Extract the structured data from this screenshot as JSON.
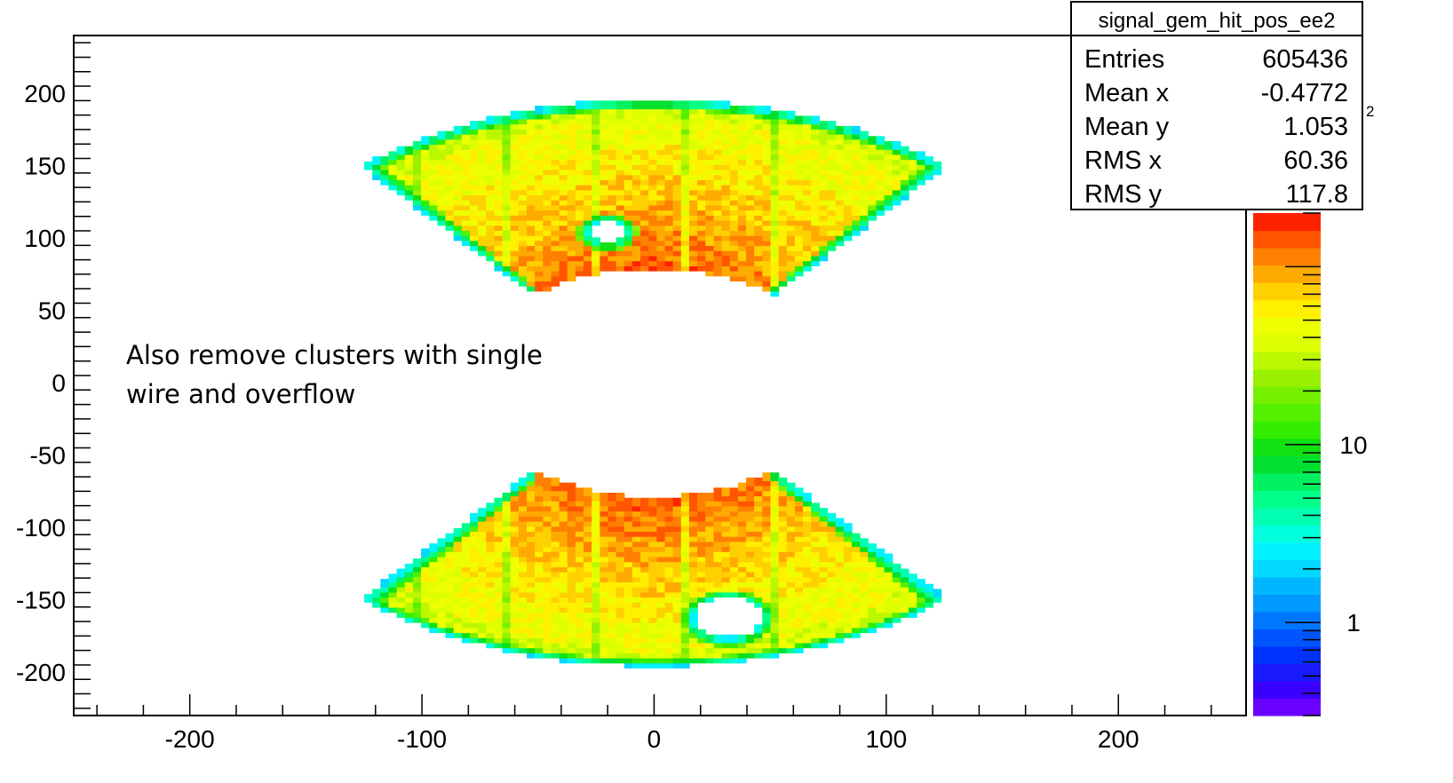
{
  "chart_data": {
    "type": "heatmap",
    "title": "signal_gem_hit_pos_ee2",
    "xlabel": "",
    "ylabel": "",
    "xlim": [
      -250,
      255
    ],
    "ylim": [
      -230,
      240
    ],
    "x_ticks": [
      -200,
      -100,
      0,
      100,
      200
    ],
    "y_ticks": [
      200,
      150,
      100,
      50,
      0,
      -50,
      -100,
      -150,
      -200
    ],
    "z_scale": "log",
    "z_range": [
      0.3,
      200
    ],
    "colorbar_ticks": [
      {
        "value": 1,
        "label": "1"
      },
      {
        "value": 10,
        "label": "10"
      }
    ],
    "colorbar_exponent": "2",
    "colorbar_palette": [
      "#6a00ff",
      "#3a00ff",
      "#1a1aff",
      "#0033ff",
      "#0055ff",
      "#0077ff",
      "#0099ff",
      "#00b7ff",
      "#00d8ff",
      "#00f2ff",
      "#00ffdd",
      "#00ffb0",
      "#00ff88",
      "#00f060",
      "#00e030",
      "#11e011",
      "#33ee00",
      "#55f000",
      "#77f000",
      "#99f000",
      "#bbf800",
      "#ddff00",
      "#eeff00",
      "#fff000",
      "#ffd000",
      "#ffaa00",
      "#ff8000",
      "#ff5500",
      "#ff2200"
    ],
    "regions": [
      {
        "name": "upper-sector",
        "y_range": [
          50,
          200
        ],
        "phi_half_width_deg": 40,
        "r_inner": 80,
        "r_outer": 195,
        "hole_center": [
          -20,
          105
        ],
        "hole_radius": 8
      },
      {
        "name": "lower-sector",
        "y_range": [
          -200,
          -50
        ],
        "phi_half_width_deg": 40,
        "r_inner": 80,
        "r_outer": 195,
        "hole_center": [
          32,
          -162
        ],
        "hole_radius": 15
      }
    ],
    "stats": {
      "title": "signal_gem_hit_pos_ee2",
      "rows": [
        {
          "label": "Entries",
          "value": "605436"
        },
        {
          "label": "Mean x",
          "value": "-0.4772"
        },
        {
          "label": "Mean y",
          "value": "1.053"
        },
        {
          "label": "RMS x",
          "value": "60.36"
        },
        {
          "label": "RMS y",
          "value": "117.8"
        }
      ]
    },
    "annotation": [
      "Also remove clusters with single",
      "wire and overflow"
    ]
  }
}
